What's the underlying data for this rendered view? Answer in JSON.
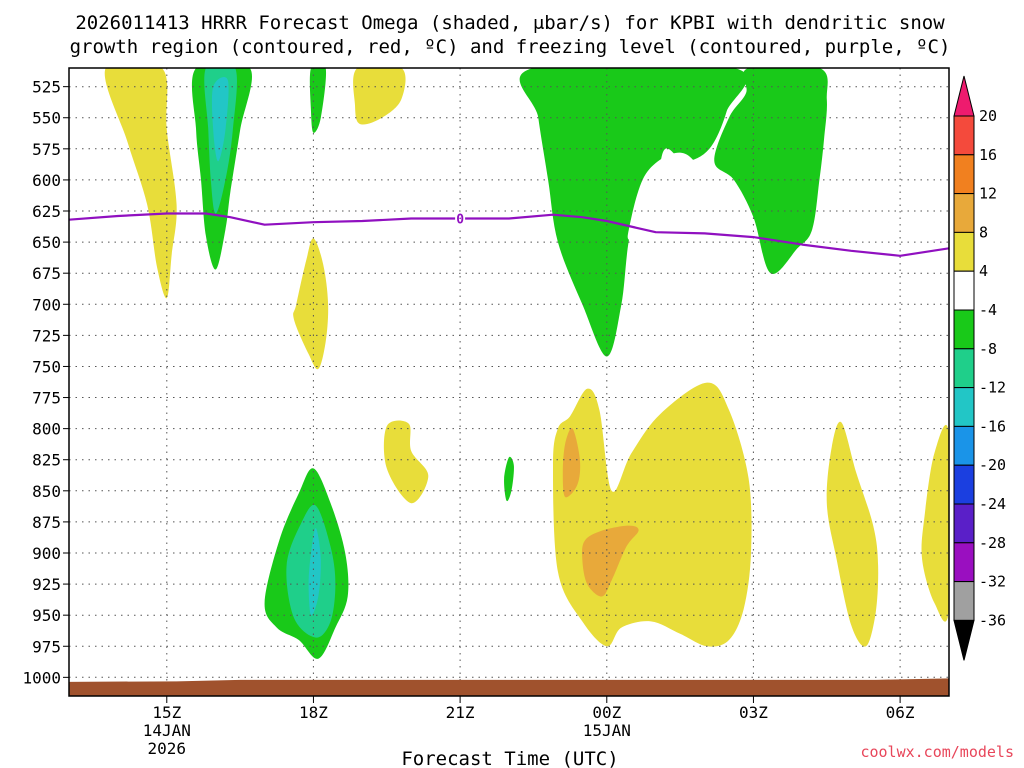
{
  "chart_data": {
    "type": "heatmap",
    "title_line1": "2026011413 HRRR Forecast Omega (shaded, μbar/s) for KPBI with dendritic snow",
    "title_line2": "growth region (contoured, red, ºC) and freezing level (contoured, purple, ºC)",
    "xlabel": "Forecast Time (UTC)",
    "credit": "coolwx.com/models",
    "y_ticks": [
      {
        "label": "525",
        "value": 525
      },
      {
        "label": "550",
        "value": 550
      },
      {
        "label": "575",
        "value": 575
      },
      {
        "label": "600",
        "value": 600
      },
      {
        "label": "625",
        "value": 625
      },
      {
        "label": "650",
        "value": 650
      },
      {
        "label": "675",
        "value": 675
      },
      {
        "label": "700",
        "value": 700
      },
      {
        "label": "725",
        "value": 725
      },
      {
        "label": "750",
        "value": 750
      },
      {
        "label": "775",
        "value": 775
      },
      {
        "label": "800",
        "value": 800
      },
      {
        "label": "825",
        "value": 825
      },
      {
        "label": "850",
        "value": 850
      },
      {
        "label": "875",
        "value": 875
      },
      {
        "label": "900",
        "value": 900
      },
      {
        "label": "925",
        "value": 925
      },
      {
        "label": "950",
        "value": 950
      },
      {
        "label": "975",
        "value": 975
      },
      {
        "label": "1000",
        "value": 1000
      }
    ],
    "y_range_hpa": [
      510,
      1015
    ],
    "x_range_hours": [
      13.0,
      31.0
    ],
    "x_ticks": [
      {
        "hour": 15,
        "label": "15Z",
        "sub1": "14JAN",
        "sub2": "2026"
      },
      {
        "hour": 18,
        "label": "18Z",
        "sub1": "",
        "sub2": ""
      },
      {
        "hour": 21,
        "label": "21Z",
        "sub1": "",
        "sub2": ""
      },
      {
        "hour": 24,
        "label": "00Z",
        "sub1": "15JAN",
        "sub2": ""
      },
      {
        "hour": 27,
        "label": "03Z",
        "sub1": "",
        "sub2": ""
      },
      {
        "hour": 30,
        "label": "06Z",
        "sub1": "",
        "sub2": ""
      }
    ],
    "colorbar": {
      "unit": "μbar/s",
      "labels": [
        "20",
        "16",
        "12",
        "8",
        "4",
        "-4",
        "-8",
        "-12",
        "-16",
        "-20",
        "-24",
        "-28",
        "-32",
        "-36"
      ],
      "colors": [
        "#ee1b6e",
        "#f44a3c",
        "#f1801f",
        "#e8a93a",
        "#e8dd3a",
        "#ffffff",
        "#19c919",
        "#1fcf8a",
        "#22c6c6",
        "#1a94e8",
        "#1b3fe0",
        "#5a1fc8",
        "#9a0fc0",
        "#a0a0a0",
        "#000000"
      ]
    },
    "freezing_level": {
      "label": "0",
      "color": "#9010c0",
      "points": [
        {
          "hour": 13.0,
          "hpa": 632
        },
        {
          "hour": 14.0,
          "hpa": 629
        },
        {
          "hour": 15.0,
          "hpa": 627
        },
        {
          "hour": 15.8,
          "hpa": 627
        },
        {
          "hour": 16.3,
          "hpa": 630
        },
        {
          "hour": 17.0,
          "hpa": 636
        },
        {
          "hour": 18.0,
          "hpa": 634
        },
        {
          "hour": 19.0,
          "hpa": 633
        },
        {
          "hour": 20.0,
          "hpa": 631
        },
        {
          "hour": 21.0,
          "hpa": 631
        },
        {
          "hour": 22.0,
          "hpa": 631
        },
        {
          "hour": 22.9,
          "hpa": 628
        },
        {
          "hour": 23.5,
          "hpa": 630
        },
        {
          "hour": 24.0,
          "hpa": 633
        },
        {
          "hour": 25.0,
          "hpa": 642
        },
        {
          "hour": 26.0,
          "hpa": 643
        },
        {
          "hour": 27.0,
          "hpa": 646
        },
        {
          "hour": 28.0,
          "hpa": 652
        },
        {
          "hour": 29.0,
          "hpa": 657
        },
        {
          "hour": 30.0,
          "hpa": 661
        },
        {
          "hour": 31.0,
          "hpa": 655
        }
      ]
    },
    "ground_color": "#a0522d",
    "omega_regions": [
      {
        "name": "rising-tongue-15z",
        "level": "4",
        "color": "#e8dd3a",
        "points": [
          [
            13.75,
            510
          ],
          [
            14.9,
            510
          ],
          [
            15.0,
            560
          ],
          [
            15.2,
            620
          ],
          [
            15.1,
            660
          ],
          [
            15.0,
            695
          ],
          [
            14.8,
            670
          ],
          [
            14.6,
            620
          ],
          [
            14.2,
            570
          ]
        ]
      },
      {
        "name": "upper-yellow-19z",
        "level": "4",
        "color": "#e8dd3a",
        "points": [
          [
            18.9,
            510
          ],
          [
            19.8,
            510
          ],
          [
            19.8,
            535
          ],
          [
            19.4,
            550
          ],
          [
            18.95,
            555
          ],
          [
            18.85,
            540
          ]
        ]
      },
      {
        "name": "green-column-16z",
        "level": "-8",
        "color": "#19c919",
        "points": [
          [
            15.6,
            510
          ],
          [
            16.7,
            510
          ],
          [
            16.5,
            560
          ],
          [
            16.3,
            610
          ],
          [
            16.2,
            640
          ],
          [
            16.0,
            672
          ],
          [
            15.8,
            645
          ],
          [
            15.7,
            600
          ],
          [
            15.6,
            560
          ]
        ]
      },
      {
        "name": "teal-column-16z",
        "level": "-12",
        "color": "#1fcf8a",
        "points": [
          [
            15.8,
            510
          ],
          [
            16.4,
            510
          ],
          [
            16.35,
            560
          ],
          [
            16.2,
            600
          ],
          [
            16.0,
            627
          ],
          [
            15.9,
            600
          ],
          [
            15.85,
            560
          ]
        ]
      },
      {
        "name": "cyan-sliver-16z",
        "level": "-16",
        "color": "#22c6c6",
        "points": [
          [
            15.95,
            525
          ],
          [
            16.25,
            520
          ],
          [
            16.2,
            560
          ],
          [
            16.05,
            585
          ],
          [
            15.95,
            560
          ]
        ]
      },
      {
        "name": "green-finger-18z",
        "level": "-8",
        "color": "#19c919",
        "points": [
          [
            17.95,
            510
          ],
          [
            18.25,
            510
          ],
          [
            18.15,
            550
          ],
          [
            18.0,
            562
          ],
          [
            17.95,
            545
          ]
        ]
      },
      {
        "name": "mid-yellow-18z",
        "level": "4",
        "color": "#e8dd3a",
        "points": [
          [
            17.65,
            700
          ],
          [
            17.85,
            665
          ],
          [
            18.0,
            647
          ],
          [
            18.2,
            668
          ],
          [
            18.3,
            700
          ],
          [
            18.25,
            730
          ],
          [
            18.1,
            752
          ],
          [
            17.9,
            740
          ],
          [
            17.6,
            712
          ]
        ]
      },
      {
        "name": "yellow-blob-20z",
        "level": "4",
        "color": "#e8dd3a",
        "points": [
          [
            19.5,
            798
          ],
          [
            19.95,
            796
          ],
          [
            20.0,
            818
          ],
          [
            20.35,
            838
          ],
          [
            20.0,
            860
          ],
          [
            19.5,
            832
          ]
        ]
      },
      {
        "name": "green-sliver-22z",
        "level": "-8",
        "color": "#19c919",
        "points": [
          [
            22.0,
            823
          ],
          [
            22.1,
            830
          ],
          [
            22.05,
            850
          ],
          [
            21.95,
            858
          ],
          [
            21.9,
            840
          ]
        ]
      },
      {
        "name": "green-storm-00z",
        "level": "-8",
        "color": "#19c919",
        "points": [
          [
            22.5,
            510
          ],
          [
            26.6,
            510
          ],
          [
            26.45,
            545
          ],
          [
            26.1,
            575
          ],
          [
            25.6,
            585
          ],
          [
            25.2,
            575
          ],
          [
            25.0,
            600
          ],
          [
            24.5,
            640
          ],
          [
            24.3,
            700
          ],
          [
            24.0,
            742
          ],
          [
            23.5,
            700
          ],
          [
            23.0,
            650
          ],
          [
            22.8,
            600
          ],
          [
            22.6,
            550
          ]
        ]
      },
      {
        "name": "white-hole-02z",
        "level": "-4",
        "color": "#ffffff",
        "points": [
          [
            24.45,
            640
          ],
          [
            24.8,
            595
          ],
          [
            25.5,
            578
          ],
          [
            26.0,
            597
          ],
          [
            26.5,
            640
          ],
          [
            26.5,
            675
          ],
          [
            26.2,
            700
          ],
          [
            25.8,
            680
          ],
          [
            25.3,
            668
          ],
          [
            24.8,
            660
          ],
          [
            24.5,
            650
          ]
        ]
      },
      {
        "name": "green-band-04z",
        "level": "-8",
        "color": "#19c919",
        "points": [
          [
            26.9,
            510
          ],
          [
            28.35,
            510
          ],
          [
            28.5,
            535
          ],
          [
            28.45,
            565
          ],
          [
            28.35,
            600
          ],
          [
            28.2,
            640
          ],
          [
            27.9,
            655
          ],
          [
            27.35,
            675
          ],
          [
            27.0,
            630
          ],
          [
            26.6,
            600
          ],
          [
            26.2,
            585
          ],
          [
            26.5,
            550
          ],
          [
            26.85,
            530
          ]
        ]
      },
      {
        "name": "low-yellow-00z",
        "level": "4",
        "color": "#e8dd3a",
        "points": [
          [
            23.25,
            790
          ],
          [
            23.6,
            768
          ],
          [
            23.85,
            785
          ],
          [
            24.1,
            850
          ],
          [
            24.5,
            820
          ],
          [
            25.1,
            788
          ],
          [
            26.05,
            763
          ],
          [
            26.5,
            785
          ],
          [
            26.9,
            840
          ],
          [
            26.95,
            900
          ],
          [
            26.8,
            945
          ],
          [
            26.5,
            970
          ],
          [
            26.05,
            975
          ],
          [
            25.5,
            965
          ],
          [
            24.9,
            955
          ],
          [
            24.3,
            960
          ],
          [
            24.0,
            975
          ],
          [
            23.5,
            955
          ],
          [
            23.0,
            915
          ],
          [
            22.9,
            830
          ],
          [
            23.0,
            800
          ]
        ]
      },
      {
        "name": "orange-finger-23z",
        "level": "8",
        "color": "#e8a93a",
        "points": [
          [
            23.15,
            812
          ],
          [
            23.3,
            800
          ],
          [
            23.45,
            825
          ],
          [
            23.4,
            845
          ],
          [
            23.15,
            855
          ],
          [
            23.1,
            835
          ]
        ]
      },
      {
        "name": "orange-blob-00z",
        "level": "8",
        "color": "#e8a93a",
        "points": [
          [
            23.55,
            890
          ],
          [
            23.9,
            882
          ],
          [
            24.45,
            878
          ],
          [
            24.65,
            882
          ],
          [
            24.4,
            895
          ],
          [
            24.1,
            922
          ],
          [
            23.9,
            935
          ],
          [
            23.6,
            925
          ],
          [
            23.5,
            905
          ]
        ]
      },
      {
        "name": "yellow-blob-05z",
        "level": "4",
        "color": "#e8dd3a",
        "points": [
          [
            28.6,
            815
          ],
          [
            28.8,
            795
          ],
          [
            29.1,
            835
          ],
          [
            29.45,
            878
          ],
          [
            29.55,
            910
          ],
          [
            29.5,
            948
          ],
          [
            29.3,
            975
          ],
          [
            29.0,
            958
          ],
          [
            28.7,
            905
          ],
          [
            28.5,
            860
          ]
        ]
      },
      {
        "name": "yellow-blob-07z",
        "level": "4",
        "color": "#e8dd3a",
        "points": [
          [
            30.5,
            870
          ],
          [
            30.7,
            820
          ],
          [
            31.0,
            805
          ],
          [
            31.0,
            945
          ],
          [
            30.7,
            940
          ],
          [
            30.45,
            905
          ]
        ]
      },
      {
        "name": "green-dome-18z",
        "level": "-8",
        "color": "#19c919",
        "points": [
          [
            17.0,
            940
          ],
          [
            17.3,
            890
          ],
          [
            17.7,
            852
          ],
          [
            18.0,
            832
          ],
          [
            18.35,
            860
          ],
          [
            18.65,
            900
          ],
          [
            18.7,
            935
          ],
          [
            18.45,
            960
          ],
          [
            18.1,
            985
          ],
          [
            17.7,
            970
          ],
          [
            17.25,
            960
          ]
        ]
      },
      {
        "name": "teal-core-18z",
        "level": "-12",
        "color": "#1fcf8a",
        "points": [
          [
            17.45,
            910
          ],
          [
            17.75,
            876
          ],
          [
            18.05,
            862
          ],
          [
            18.35,
            895
          ],
          [
            18.45,
            925
          ],
          [
            18.35,
            955
          ],
          [
            18.05,
            968
          ],
          [
            17.6,
            952
          ]
        ]
      },
      {
        "name": "cyan-core-18z",
        "level": "-16",
        "color": "#22c6c6",
        "points": [
          [
            17.95,
            900
          ],
          [
            18.05,
            880
          ],
          [
            18.15,
            905
          ],
          [
            18.1,
            935
          ],
          [
            17.95,
            950
          ],
          [
            17.9,
            925
          ]
        ]
      }
    ]
  }
}
